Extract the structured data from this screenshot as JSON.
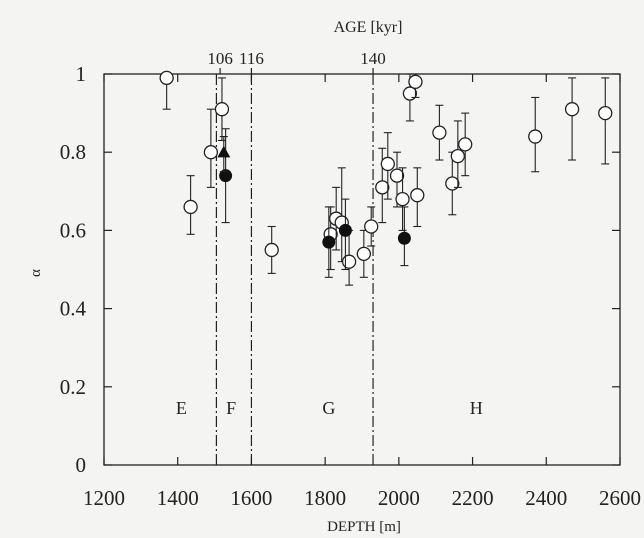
{
  "chart_data": {
    "type": "scatter",
    "xlabel": "DEPTH [m]",
    "ylabel": "α",
    "top_axis_label": "AGE [kyr]",
    "xlim": [
      1200,
      2600
    ],
    "ylim": [
      0,
      1
    ],
    "x_ticks": [
      1200,
      1400,
      1600,
      1800,
      2000,
      2200,
      2400,
      2600
    ],
    "x_tick_labels": [
      "1200",
      "1400",
      "1600",
      "1800",
      "2000",
      "2200",
      "2400",
      "2600"
    ],
    "y_ticks": [
      0,
      0.2,
      0.4,
      0.6,
      0.8,
      1
    ],
    "y_tick_labels": [
      "0",
      "0.2",
      "0.4",
      "0.6",
      "0.8",
      "1"
    ],
    "age_ticks": [
      {
        "depth": 1515,
        "label": "106"
      },
      {
        "depth": 1600,
        "label": "116"
      },
      {
        "depth": 1930,
        "label": "140"
      }
    ],
    "boundaries": [
      1505,
      1600,
      1930
    ],
    "zones": [
      {
        "label": "E",
        "depth": 1410
      },
      {
        "label": "F",
        "depth": 1545
      },
      {
        "label": "G",
        "depth": 1810
      },
      {
        "label": "H",
        "depth": 2210
      }
    ],
    "grid": false,
    "series": [
      {
        "marker": "open-circle",
        "points": [
          {
            "x": 1370,
            "y": 0.99,
            "lo": 0.91,
            "hi": 1.0
          },
          {
            "x": 1435,
            "y": 0.66,
            "lo": 0.59,
            "hi": 0.74
          },
          {
            "x": 1490,
            "y": 0.8,
            "lo": 0.71,
            "hi": 0.91
          },
          {
            "x": 1520,
            "y": 0.91,
            "lo": 0.83,
            "hi": 0.99
          },
          {
            "x": 1655,
            "y": 0.55,
            "lo": 0.49,
            "hi": 0.61
          },
          {
            "x": 1815,
            "y": 0.59,
            "lo": 0.5,
            "hi": 0.66
          },
          {
            "x": 1830,
            "y": 0.63,
            "lo": 0.55,
            "hi": 0.71
          },
          {
            "x": 1845,
            "y": 0.62,
            "lo": 0.52,
            "hi": 0.76
          },
          {
            "x": 1865,
            "y": 0.52,
            "lo": 0.46,
            "hi": 0.6
          },
          {
            "x": 1905,
            "y": 0.54,
            "lo": 0.48,
            "hi": 0.6
          },
          {
            "x": 1925,
            "y": 0.61,
            "lo": 0.56,
            "hi": 0.66
          },
          {
            "x": 1955,
            "y": 0.71,
            "lo": 0.62,
            "hi": 0.81
          },
          {
            "x": 1970,
            "y": 0.77,
            "lo": 0.68,
            "hi": 0.85
          },
          {
            "x": 1995,
            "y": 0.74,
            "lo": 0.66,
            "hi": 0.8
          },
          {
            "x": 2010,
            "y": 0.68,
            "lo": 0.6,
            "hi": 0.76
          },
          {
            "x": 2030,
            "y": 0.95,
            "lo": 0.88,
            "hi": 1.0
          },
          {
            "x": 2045,
            "y": 0.98,
            "lo": 0.94,
            "hi": 1.0
          },
          {
            "x": 2050,
            "y": 0.69,
            "lo": 0.61,
            "hi": 0.76
          },
          {
            "x": 2110,
            "y": 0.85,
            "lo": 0.78,
            "hi": 0.92
          },
          {
            "x": 2145,
            "y": 0.72,
            "lo": 0.64,
            "hi": 0.8
          },
          {
            "x": 2160,
            "y": 0.79,
            "lo": 0.71,
            "hi": 0.88
          },
          {
            "x": 2180,
            "y": 0.82,
            "lo": 0.74,
            "hi": 0.9
          },
          {
            "x": 2370,
            "y": 0.84,
            "lo": 0.75,
            "hi": 0.94
          },
          {
            "x": 2470,
            "y": 0.91,
            "lo": 0.78,
            "hi": 0.99
          },
          {
            "x": 2560,
            "y": 0.9,
            "lo": 0.77,
            "hi": 0.99
          }
        ]
      },
      {
        "marker": "filled-circle",
        "points": [
          {
            "x": 1530,
            "y": 0.74,
            "lo": 0.62,
            "hi": 0.86
          },
          {
            "x": 1810,
            "y": 0.57,
            "lo": 0.48,
            "hi": 0.66
          },
          {
            "x": 1855,
            "y": 0.6,
            "lo": 0.5,
            "hi": 0.68
          },
          {
            "x": 2015,
            "y": 0.58,
            "lo": 0.51,
            "hi": 0.66
          }
        ]
      },
      {
        "marker": "filled-triangle",
        "points": [
          {
            "x": 1525,
            "y": 0.8,
            "lo": 0.75,
            "hi": 0.84
          }
        ]
      }
    ]
  }
}
